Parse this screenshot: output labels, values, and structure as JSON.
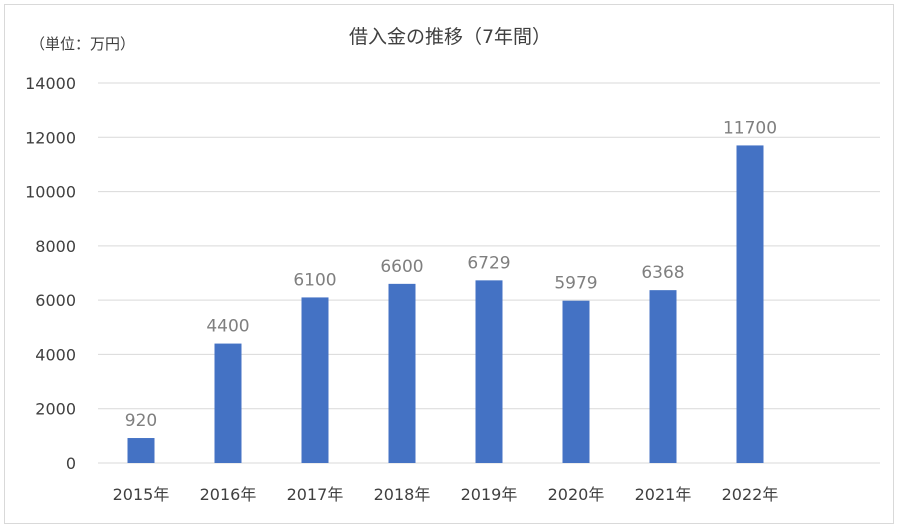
{
  "chart_data": {
    "type": "bar",
    "title": "借入金の推移（7年間）",
    "unit_label": "（単位：万円）",
    "categories": [
      "2015年",
      "2016年",
      "2017年",
      "2018年",
      "2019年",
      "2020年",
      "2021年",
      "2022年"
    ],
    "values": [
      920,
      4400,
      6100,
      6600,
      6729,
      5979,
      6368,
      11700
    ],
    "data_labels": [
      "920",
      "4400",
      "6100",
      "6600",
      "6729",
      "5979",
      "6368",
      "11700"
    ],
    "y_ticks": [
      "0",
      "2000",
      "4000",
      "6000",
      "8000",
      "10000",
      "12000",
      "14000"
    ],
    "ylim": [
      0,
      14000
    ],
    "grid": true,
    "legend": "none",
    "colors": {
      "bar": "#4472c4",
      "grid": "#d9d9d9",
      "axis_text": "#404040",
      "label_text": "#7f7f7f"
    }
  }
}
